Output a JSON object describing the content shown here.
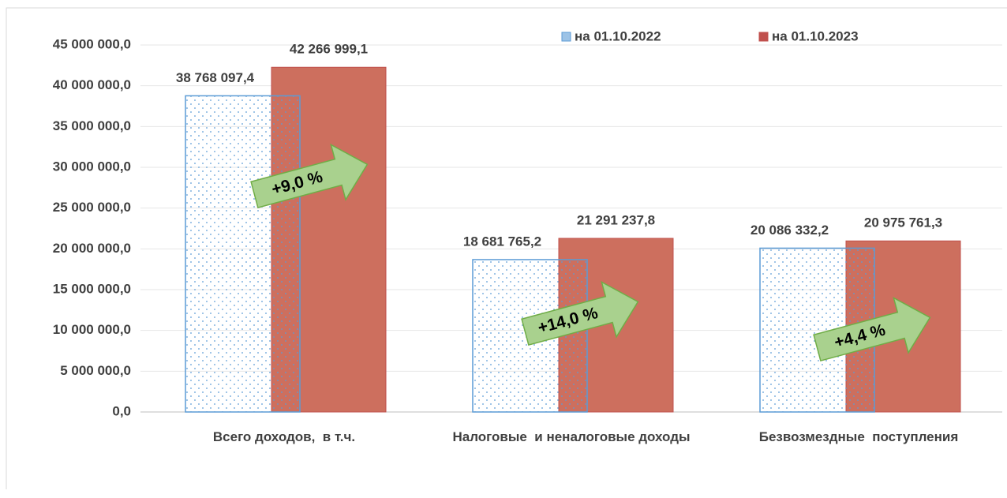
{
  "chart_data": {
    "type": "bar",
    "categories": [
      "Всего доходов,  в т.ч.",
      "Налоговые  и неналоговые доходы",
      "Безвозмездные  поступления"
    ],
    "series": [
      {
        "name": "на 01.10.2022",
        "color": "#5b9bd5",
        "values": [
          38768097.4,
          18681765.2,
          20086332.2
        ],
        "value_labels": [
          "38 768 097,4",
          "18 681 765,2",
          "20 086 332,2"
        ]
      },
      {
        "name": "на 01.10.2023",
        "color": "#c0504d",
        "values": [
          42266999.1,
          21291237.8,
          20975761.3
        ],
        "value_labels": [
          "42 266 999,1",
          "21 291 237,8",
          "20 975 761,3"
        ]
      }
    ],
    "ylim": [
      0,
      45000000
    ],
    "yticks": [
      {
        "value": 0,
        "label": "0,0"
      },
      {
        "value": 5000000,
        "label": "5 000 000,0"
      },
      {
        "value": 10000000,
        "label": "10 000 000,0"
      },
      {
        "value": 15000000,
        "label": "15 000 000,0"
      },
      {
        "value": 20000000,
        "label": "20 000 000,0"
      },
      {
        "value": 25000000,
        "label": "25 000 000,0"
      },
      {
        "value": 30000000,
        "label": "30 000 000,0"
      },
      {
        "value": 35000000,
        "label": "35 000 000,0"
      },
      {
        "value": 40000000,
        "label": "40 000 000,0"
      },
      {
        "value": 45000000,
        "label": "45 000 000,0"
      }
    ],
    "grid": true,
    "annotations": [
      "+9,0 %",
      "+14,0 %",
      "+4,4 %"
    ]
  }
}
